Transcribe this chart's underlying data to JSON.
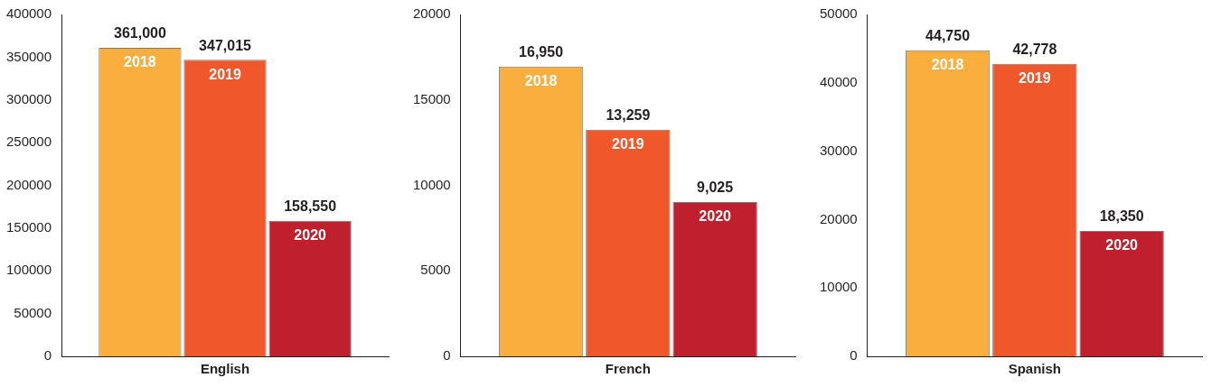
{
  "chart_data": [
    {
      "type": "bar",
      "categories": [
        "English"
      ],
      "ylim": [
        0,
        400000
      ],
      "yticks": [
        0,
        50000,
        100000,
        150000,
        200000,
        250000,
        300000,
        350000,
        400000
      ],
      "series": [
        {
          "name": "2018",
          "color": "#f9ae3d",
          "values": [
            361000
          ],
          "value_labels": [
            "361,000"
          ]
        },
        {
          "name": "2019",
          "color": "#f0582b",
          "values": [
            347015
          ],
          "value_labels": [
            "347,015"
          ]
        },
        {
          "name": "2020",
          "color": "#c01f2e",
          "values": [
            158550
          ],
          "value_labels": [
            "158,550"
          ]
        }
      ]
    },
    {
      "type": "bar",
      "categories": [
        "French"
      ],
      "ylim": [
        0,
        20000
      ],
      "yticks": [
        0,
        5000,
        10000,
        15000,
        20000
      ],
      "series": [
        {
          "name": "2018",
          "color": "#f9ae3d",
          "values": [
            16950
          ],
          "value_labels": [
            "16,950"
          ]
        },
        {
          "name": "2019",
          "color": "#f0582b",
          "values": [
            13259
          ],
          "value_labels": [
            "13,259"
          ]
        },
        {
          "name": "2020",
          "color": "#c01f2e",
          "values": [
            9025
          ],
          "value_labels": [
            "9,025"
          ]
        }
      ]
    },
    {
      "type": "bar",
      "categories": [
        "Spanish"
      ],
      "ylim": [
        0,
        50000
      ],
      "yticks": [
        0,
        10000,
        20000,
        30000,
        40000,
        50000
      ],
      "series": [
        {
          "name": "2018",
          "color": "#f9ae3d",
          "values": [
            44750
          ],
          "value_labels": [
            "44,750"
          ]
        },
        {
          "name": "2019",
          "color": "#f0582b",
          "values": [
            42778
          ],
          "value_labels": [
            "42,778"
          ]
        },
        {
          "name": "2020",
          "color": "#c01f2e",
          "values": [
            18350
          ],
          "value_labels": [
            "18,350"
          ]
        }
      ]
    }
  ]
}
